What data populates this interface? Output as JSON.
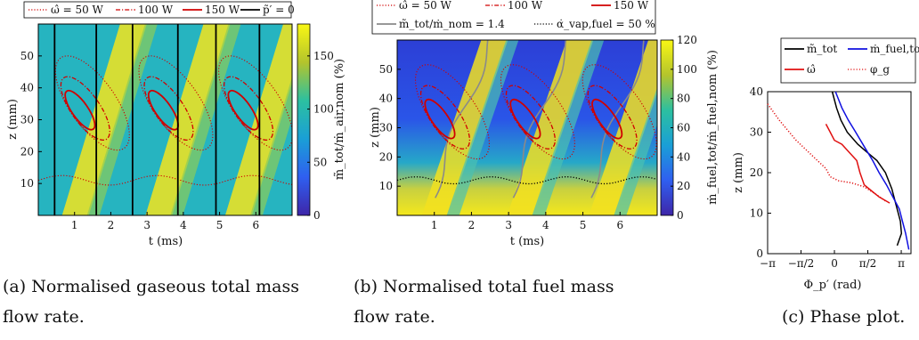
{
  "chart_data": [
    {
      "type": "heatmap",
      "panel": "a",
      "caption_lines": [
        "(a) Normalised gaseous total mass",
        "flow rate."
      ],
      "xlabel": "t (ms)",
      "ylabel": "z (mm)",
      "colorbar_label": "m̃_tot/ṁ_air,nom (%)",
      "xlim": [
        0,
        7
      ],
      "ylim": [
        0,
        60
      ],
      "clim": [
        0,
        180
      ],
      "xticks": [
        1,
        2,
        3,
        4,
        5,
        6
      ],
      "yticks": [
        10,
        20,
        30,
        40,
        50
      ],
      "cticks": [
        0,
        50,
        100,
        150
      ],
      "legend": [
        {
          "label": "ω̂ = 50 W",
          "color": "#d00000",
          "style": "dotted"
        },
        {
          "label": "100 W",
          "color": "#d00000",
          "style": "dashdot"
        },
        {
          "label": "150 W",
          "color": "#d00000",
          "style": "solid"
        },
        {
          "label": "p̃′ = 0",
          "color": "#000000",
          "style": "solid"
        }
      ],
      "zero_pressure_lines_t": [
        0.45,
        1.6,
        2.6,
        3.85,
        4.9,
        6.1
      ],
      "flame_centers_t": [
        0.95,
        3.25,
        5.45
      ]
    },
    {
      "type": "heatmap",
      "panel": "b",
      "caption_lines": [
        "(b)  Normalised  total  fuel  mass",
        "flow rate."
      ],
      "xlabel": "t (ms)",
      "ylabel": "z (mm)",
      "colorbar_label": "ṁ_fuel,tot/ṁ_fuel,nom (%)",
      "xlim": [
        0,
        7
      ],
      "ylim": [
        0,
        60
      ],
      "clim": [
        0,
        120
      ],
      "xticks": [
        1,
        2,
        3,
        4,
        5,
        6
      ],
      "yticks": [
        10,
        20,
        30,
        40,
        50
      ],
      "cticks": [
        0,
        20,
        40,
        60,
        80,
        100,
        120
      ],
      "legend": [
        {
          "label": "ω̂ = 50 W",
          "color": "#d00000",
          "style": "dotted"
        },
        {
          "label": "100 W",
          "color": "#d00000",
          "style": "dashdot"
        },
        {
          "label": "150 W",
          "color": "#d00000",
          "style": "solid"
        },
        {
          "label": "m̃_tot/ṁ_nom = 1.4",
          "color": "#8a8a8a",
          "style": "solid"
        },
        {
          "label": "α̇_vap,fuel = 50 %",
          "color": "#000000",
          "style": "dotted"
        }
      ],
      "flame_centers_t": [
        0.95,
        3.25,
        5.45
      ],
      "gray_contour_t": [
        1.8,
        3.9,
        6.0
      ]
    },
    {
      "type": "line",
      "panel": "c",
      "caption_lines": [
        "(c) Phase plot."
      ],
      "xlabel": "Φ_p′ (rad)",
      "ylabel": "z (mm)",
      "xlim": [
        -3.1416,
        3.6
      ],
      "ylim": [
        0,
        40
      ],
      "xticks": [
        -3.1416,
        -1.5708,
        0,
        1.5708,
        3.1416
      ],
      "xtick_labels": [
        "−π",
        "−π/2",
        "0",
        "π/2",
        "π"
      ],
      "yticks": [
        0,
        10,
        20,
        30,
        40
      ],
      "series": [
        {
          "name": "m̃_tot",
          "color": "#000000",
          "style": "solid",
          "points": [
            [
              2.95,
              2
            ],
            [
              3.15,
              5
            ],
            [
              3.1,
              8
            ],
            [
              2.9,
              12
            ],
            [
              2.7,
              16
            ],
            [
              2.4,
              20
            ],
            [
              2.0,
              23
            ],
            [
              1.55,
              25
            ],
            [
              1.1,
              27
            ],
            [
              0.6,
              30
            ],
            [
              0.3,
              33
            ],
            [
              0.1,
              36
            ],
            [
              -0.1,
              40
            ]
          ]
        },
        {
          "name": "ṁ_fuel,tot",
          "color": "#1010e0",
          "style": "solid",
          "points": [
            [
              3.5,
              1
            ],
            [
              3.35,
              5
            ],
            [
              3.2,
              8
            ],
            [
              3.05,
              11
            ],
            [
              2.75,
              14
            ],
            [
              2.45,
              17
            ],
            [
              2.1,
              20
            ],
            [
              1.8,
              23
            ],
            [
              1.45,
              26
            ],
            [
              1.0,
              30
            ],
            [
              0.65,
              33
            ],
            [
              0.35,
              36
            ],
            [
              0.05,
              40
            ]
          ]
        },
        {
          "name": "ω̂",
          "color": "#e01010",
          "style": "solid",
          "points": [
            [
              2.6,
              12.5
            ],
            [
              2.1,
              14
            ],
            [
              1.75,
              15.5
            ],
            [
              1.4,
              17
            ],
            [
              1.2,
              20
            ],
            [
              1.05,
              23
            ],
            [
              0.7,
              25
            ],
            [
              0.35,
              27
            ],
            [
              0.0,
              28
            ],
            [
              -0.2,
              30
            ],
            [
              -0.4,
              32
            ]
          ]
        },
        {
          "name": "φ_g",
          "color": "#e01010",
          "style": "dotted",
          "points": [
            [
              -3.14,
              37
            ],
            [
              -2.6,
              33
            ],
            [
              -1.8,
              28
            ],
            [
              -1.0,
              24
            ],
            [
              -0.4,
              21
            ],
            [
              -0.2,
              19
            ],
            [
              0.2,
              18
            ],
            [
              0.8,
              17.5
            ],
            [
              1.4,
              16.5
            ],
            [
              2.0,
              14.5
            ],
            [
              2.4,
              13
            ]
          ]
        }
      ]
    }
  ]
}
